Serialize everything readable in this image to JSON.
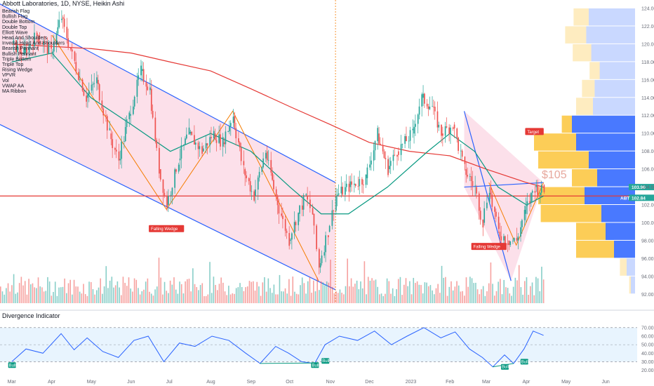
{
  "chart_data": {
    "type": "candlestick",
    "title": "Abbott Laboratories, 1D, NYSE, Heikin Ashi",
    "indicators_list": [
      "Bearish Flag",
      "Bullish Flag",
      "Double Bottom",
      "Double Top",
      "Elliott Wave",
      "Head And Shoulders",
      "Inverse Head And Shoulders",
      "Bearish Pennant",
      "Bullish Pennant",
      "Triple Bottom",
      "Triple Top",
      "Rising Wedge",
      "VPVR",
      "Vol",
      "VWAP AA",
      "MA Ribbon"
    ],
    "x_ticks": [
      "Mar",
      "Apr",
      "May",
      "Jun",
      "Jul",
      "Aug",
      "Sep",
      "Oct",
      "Nov",
      "Dec",
      "2023",
      "Feb",
      "Mar",
      "Apr",
      "May",
      "Jun"
    ],
    "ylim": [
      91,
      124
    ],
    "y_ticks": [
      92,
      94,
      96,
      98,
      100,
      102,
      104,
      106,
      108,
      110,
      112,
      114,
      116,
      118,
      120,
      122,
      124
    ],
    "price_labels": {
      "upper": "103.96",
      "lower": "102.84",
      "ticker": "ABT"
    },
    "close_path": [
      {
        "d": "2022-03-01",
        "c": 120
      },
      {
        "d": "2022-03-10",
        "c": 119
      },
      {
        "d": "2022-03-20",
        "c": 121
      },
      {
        "d": "2022-03-31",
        "c": 119
      },
      {
        "d": "2022-04-08",
        "c": 123
      },
      {
        "d": "2022-04-18",
        "c": 118
      },
      {
        "d": "2022-04-27",
        "c": 114
      },
      {
        "d": "2022-05-05",
        "c": 116
      },
      {
        "d": "2022-05-15",
        "c": 110
      },
      {
        "d": "2022-05-22",
        "c": 107
      },
      {
        "d": "2022-05-30",
        "c": 112
      },
      {
        "d": "2022-06-08",
        "c": 117
      },
      {
        "d": "2022-06-15",
        "c": 115
      },
      {
        "d": "2022-06-22",
        "c": 106
      },
      {
        "d": "2022-06-28",
        "c": 102
      },
      {
        "d": "2022-07-07",
        "c": 107
      },
      {
        "d": "2022-07-15",
        "c": 110
      },
      {
        "d": "2022-07-25",
        "c": 108
      },
      {
        "d": "2022-08-03",
        "c": 110
      },
      {
        "d": "2022-08-10",
        "c": 109
      },
      {
        "d": "2022-08-18",
        "c": 112
      },
      {
        "d": "2022-08-26",
        "c": 106
      },
      {
        "d": "2022-09-03",
        "c": 103
      },
      {
        "d": "2022-09-12",
        "c": 108
      },
      {
        "d": "2022-09-20",
        "c": 103
      },
      {
        "d": "2022-09-30",
        "c": 98
      },
      {
        "d": "2022-10-07",
        "c": 101
      },
      {
        "d": "2022-10-13",
        "c": 103
      },
      {
        "d": "2022-10-18",
        "c": 101
      },
      {
        "d": "2022-10-23",
        "c": 95
      },
      {
        "d": "2022-10-30",
        "c": 99
      },
      {
        "d": "2022-11-05",
        "c": 103
      },
      {
        "d": "2022-11-15",
        "c": 104
      },
      {
        "d": "2022-11-28",
        "c": 105
      },
      {
        "d": "2022-12-07",
        "c": 110
      },
      {
        "d": "2022-12-15",
        "c": 106
      },
      {
        "d": "2022-12-22",
        "c": 108
      },
      {
        "d": "2023-01-03",
        "c": 110
      },
      {
        "d": "2023-01-10",
        "c": 114
      },
      {
        "d": "2023-01-18",
        "c": 113
      },
      {
        "d": "2023-01-25",
        "c": 110
      },
      {
        "d": "2023-02-03",
        "c": 111
      },
      {
        "d": "2023-02-12",
        "c": 106
      },
      {
        "d": "2023-02-20",
        "c": 104
      },
      {
        "d": "2023-02-26",
        "c": 100
      },
      {
        "d": "2023-03-03",
        "c": 104
      },
      {
        "d": "2023-03-10",
        "c": 99
      },
      {
        "d": "2023-03-17",
        "c": 98
      },
      {
        "d": "2023-03-24",
        "c": 98
      },
      {
        "d": "2023-03-30",
        "c": 101
      },
      {
        "d": "2023-04-07",
        "c": 104
      },
      {
        "d": "2023-04-14",
        "c": 103.5
      }
    ],
    "ma_green": [
      {
        "d": "2022-03-01",
        "v": 118
      },
      {
        "d": "2022-04-01",
        "v": 119
      },
      {
        "d": "2022-05-01",
        "v": 114
      },
      {
        "d": "2022-06-01",
        "v": 111
      },
      {
        "d": "2022-07-01",
        "v": 108
      },
      {
        "d": "2022-08-01",
        "v": 110
      },
      {
        "d": "2022-09-01",
        "v": 108
      },
      {
        "d": "2022-10-01",
        "v": 104
      },
      {
        "d": "2022-10-25",
        "v": 101
      },
      {
        "d": "2022-11-15",
        "v": 101
      },
      {
        "d": "2022-12-15",
        "v": 104
      },
      {
        "d": "2023-01-15",
        "v": 108
      },
      {
        "d": "2023-02-01",
        "v": 110
      },
      {
        "d": "2023-02-20",
        "v": 108
      },
      {
        "d": "2023-03-10",
        "v": 104
      },
      {
        "d": "2023-04-01",
        "v": 102
      },
      {
        "d": "2023-04-14",
        "v": 103
      }
    ],
    "ma_red": [
      {
        "d": "2022-03-01",
        "v": 120
      },
      {
        "d": "2022-05-01",
        "v": 119.5
      },
      {
        "d": "2022-06-01",
        "v": 119
      },
      {
        "d": "2022-07-01",
        "v": 118
      },
      {
        "d": "2022-08-01",
        "v": 117
      },
      {
        "d": "2022-09-01",
        "v": 115
      },
      {
        "d": "2022-10-01",
        "v": 113
      },
      {
        "d": "2022-11-01",
        "v": 111
      },
      {
        "d": "2022-12-01",
        "v": 109
      },
      {
        "d": "2023-01-01",
        "v": 108
      },
      {
        "d": "2023-02-01",
        "v": 107.5
      },
      {
        "d": "2023-03-01",
        "v": 106
      },
      {
        "d": "2023-04-01",
        "v": 104.5
      },
      {
        "d": "2023-04-14",
        "v": 104
      }
    ],
    "horizontal_line": 103,
    "annotations": [
      {
        "label": "Falling Wedge",
        "d": "2022-06-28",
        "v": 101
      },
      {
        "label": "Falling Wedge",
        "d": "2023-03-03",
        "v": 99
      },
      {
        "label": "Target",
        "d": "2023-04-07",
        "v": 107
      }
    ],
    "target_text": "$105",
    "oscillator": {
      "title": "Divergence Indicator",
      "ylim": [
        18,
        74
      ],
      "y_ticks": [
        20,
        30,
        40,
        50,
        60,
        70
      ],
      "band": [
        30,
        70
      ],
      "badges": [
        "Bull",
        "Bull",
        "Bull",
        "Bull",
        "Bull"
      ],
      "series": [
        {
          "d": "2022-03-01",
          "v": 30
        },
        {
          "d": "2022-03-12",
          "v": 45
        },
        {
          "d": "2022-03-25",
          "v": 40
        },
        {
          "d": "2022-04-08",
          "v": 63
        },
        {
          "d": "2022-04-18",
          "v": 44
        },
        {
          "d": "2022-04-28",
          "v": 58
        },
        {
          "d": "2022-05-10",
          "v": 42
        },
        {
          "d": "2022-05-22",
          "v": 35
        },
        {
          "d": "2022-06-03",
          "v": 55
        },
        {
          "d": "2022-06-14",
          "v": 60
        },
        {
          "d": "2022-06-26",
          "v": 30
        },
        {
          "d": "2022-07-08",
          "v": 52
        },
        {
          "d": "2022-07-20",
          "v": 48
        },
        {
          "d": "2022-08-02",
          "v": 60
        },
        {
          "d": "2022-08-15",
          "v": 55
        },
        {
          "d": "2022-08-28",
          "v": 40
        },
        {
          "d": "2022-09-08",
          "v": 28
        },
        {
          "d": "2022-09-20",
          "v": 48
        },
        {
          "d": "2022-09-30",
          "v": 40
        },
        {
          "d": "2022-10-10",
          "v": 30
        },
        {
          "d": "2022-10-20",
          "v": 28
        },
        {
          "d": "2022-10-28",
          "v": 50
        },
        {
          "d": "2022-11-08",
          "v": 60
        },
        {
          "d": "2022-11-22",
          "v": 55
        },
        {
          "d": "2022-12-05",
          "v": 66
        },
        {
          "d": "2022-12-18",
          "v": 50
        },
        {
          "d": "2022-12-30",
          "v": 60
        },
        {
          "d": "2023-01-12",
          "v": 70
        },
        {
          "d": "2023-01-25",
          "v": 58
        },
        {
          "d": "2023-02-05",
          "v": 65
        },
        {
          "d": "2023-02-16",
          "v": 45
        },
        {
          "d": "2023-02-26",
          "v": 35
        },
        {
          "d": "2023-03-06",
          "v": 24
        },
        {
          "d": "2023-03-15",
          "v": 38
        },
        {
          "d": "2023-03-22",
          "v": 28
        },
        {
          "d": "2023-03-30",
          "v": 45
        },
        {
          "d": "2023-04-06",
          "v": 66
        },
        {
          "d": "2023-04-14",
          "v": 61
        }
      ]
    },
    "vp_rows": [
      {
        "p": 123,
        "l": 0.18,
        "r": 0.55
      },
      {
        "p": 121,
        "l": 0.25,
        "r": 0.58
      },
      {
        "p": 119,
        "l": 0.22,
        "r": 0.52
      },
      {
        "p": 117,
        "l": 0.12,
        "r": 0.42
      },
      {
        "p": 115,
        "l": 0.15,
        "r": 0.48
      },
      {
        "p": 113,
        "l": 0.2,
        "r": 0.5
      },
      {
        "p": 111,
        "l": 0.12,
        "r": 0.75
      },
      {
        "p": 109,
        "l": 0.5,
        "r": 0.7
      },
      {
        "p": 107,
        "l": 0.6,
        "r": 0.55
      },
      {
        "p": 105,
        "l": 0.3,
        "r": 0.45
      },
      {
        "p": 103,
        "l": 0.55,
        "r": 0.6
      },
      {
        "p": 101,
        "l": 0.72,
        "r": 0.4
      },
      {
        "p": 99,
        "l": 0.35,
        "r": 0.35
      },
      {
        "p": 97,
        "l": 0.45,
        "r": 0.25
      },
      {
        "p": 95,
        "l": 0.08,
        "r": 0.1
      },
      {
        "p": 93,
        "l": 0.02,
        "r": 0.05
      }
    ],
    "colors": {
      "up": "#26a69a",
      "down": "#ef5350",
      "ma_green": "#089981",
      "ma_red": "#e53935",
      "channel": "#2962ff",
      "wedge_fill": "#f8bbd0",
      "vp_up": "#2962ff",
      "vp_down": "#fbc02d"
    }
  }
}
